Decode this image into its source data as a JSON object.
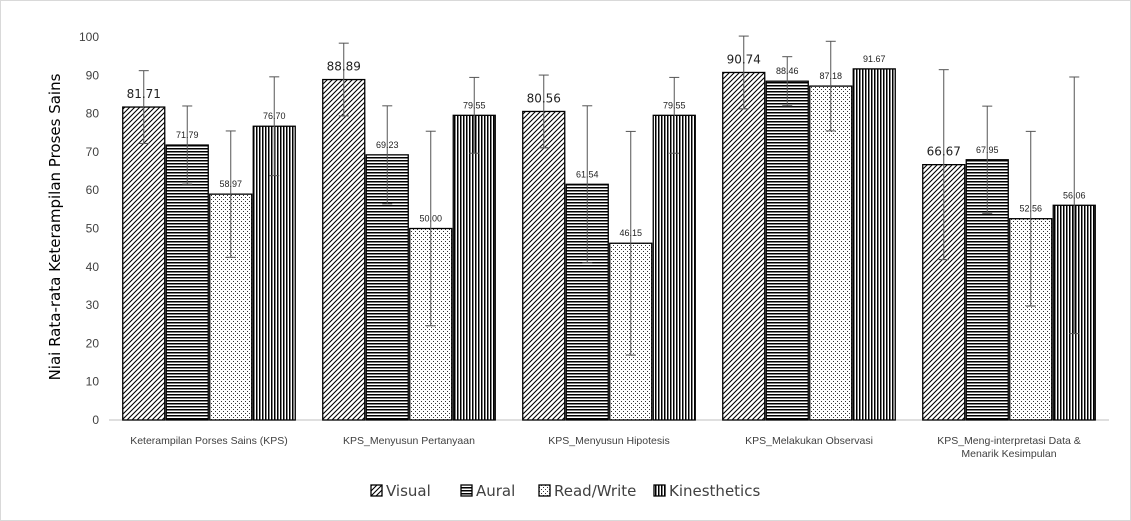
{
  "chart_data": {
    "type": "bar",
    "title": "",
    "ylabel": "Niai Rata-rata Keterampilan Proses Sains",
    "xlabel": "",
    "ylim": [
      0,
      100
    ],
    "yticks": [
      "0",
      "10",
      "20",
      "30",
      "40",
      "50",
      "60",
      "70",
      "80",
      "90",
      "100"
    ],
    "categories": [
      [
        "Keterampilan Porses Sains (KPS)"
      ],
      [
        "KPS_Menyusun Pertanyaan"
      ],
      [
        "KPS_Menyusun Hipotesis"
      ],
      [
        "KPS_Melakukan Observasi"
      ],
      [
        "KPS_Meng-interpretasi Data &",
        "Menarik Kesimpulan"
      ]
    ],
    "series": [
      {
        "name": "Visual",
        "values": [
          81.71,
          88.89,
          80.56,
          90.74,
          66.67
        ],
        "labels": [
          "81.71",
          "88.89",
          "80.56",
          "90.74",
          "66.67"
        ],
        "error": [
          9.5,
          9.5,
          9.5,
          9.5,
          24.8
        ],
        "pattern": "diagonal"
      },
      {
        "name": "Aural",
        "values": [
          71.79,
          69.23,
          61.54,
          88.46,
          67.95
        ],
        "labels": [
          "71.79",
          "69.23",
          "61.54",
          "88.46",
          "67.95"
        ],
        "error": [
          10.2,
          12.8,
          20.5,
          6.4,
          14.0
        ],
        "pattern": "horizontal"
      },
      {
        "name": "Read/Write",
        "values": [
          58.97,
          50.0,
          46.15,
          87.18,
          52.56
        ],
        "labels": [
          "58.97",
          "50.00",
          "46.15",
          "87.18",
          "52.56"
        ],
        "error": [
          16.5,
          25.4,
          29.2,
          11.7,
          22.8
        ],
        "pattern": "dots"
      },
      {
        "name": "Kinesthetics",
        "values": [
          76.7,
          79.55,
          79.55,
          91.67,
          56.06
        ],
        "labels": [
          "76.70",
          "79.55",
          "79.55",
          "91.67",
          "56.06"
        ],
        "error": [
          12.9,
          9.9,
          9.9,
          0,
          33.5
        ],
        "pattern": "vertical"
      }
    ],
    "grid": false,
    "legend_position": "bottom",
    "colors": {
      "bar_fill": "#ffffff",
      "bar_stroke": "#000000",
      "axis": "#bfbfbf",
      "text": "#404040"
    }
  }
}
